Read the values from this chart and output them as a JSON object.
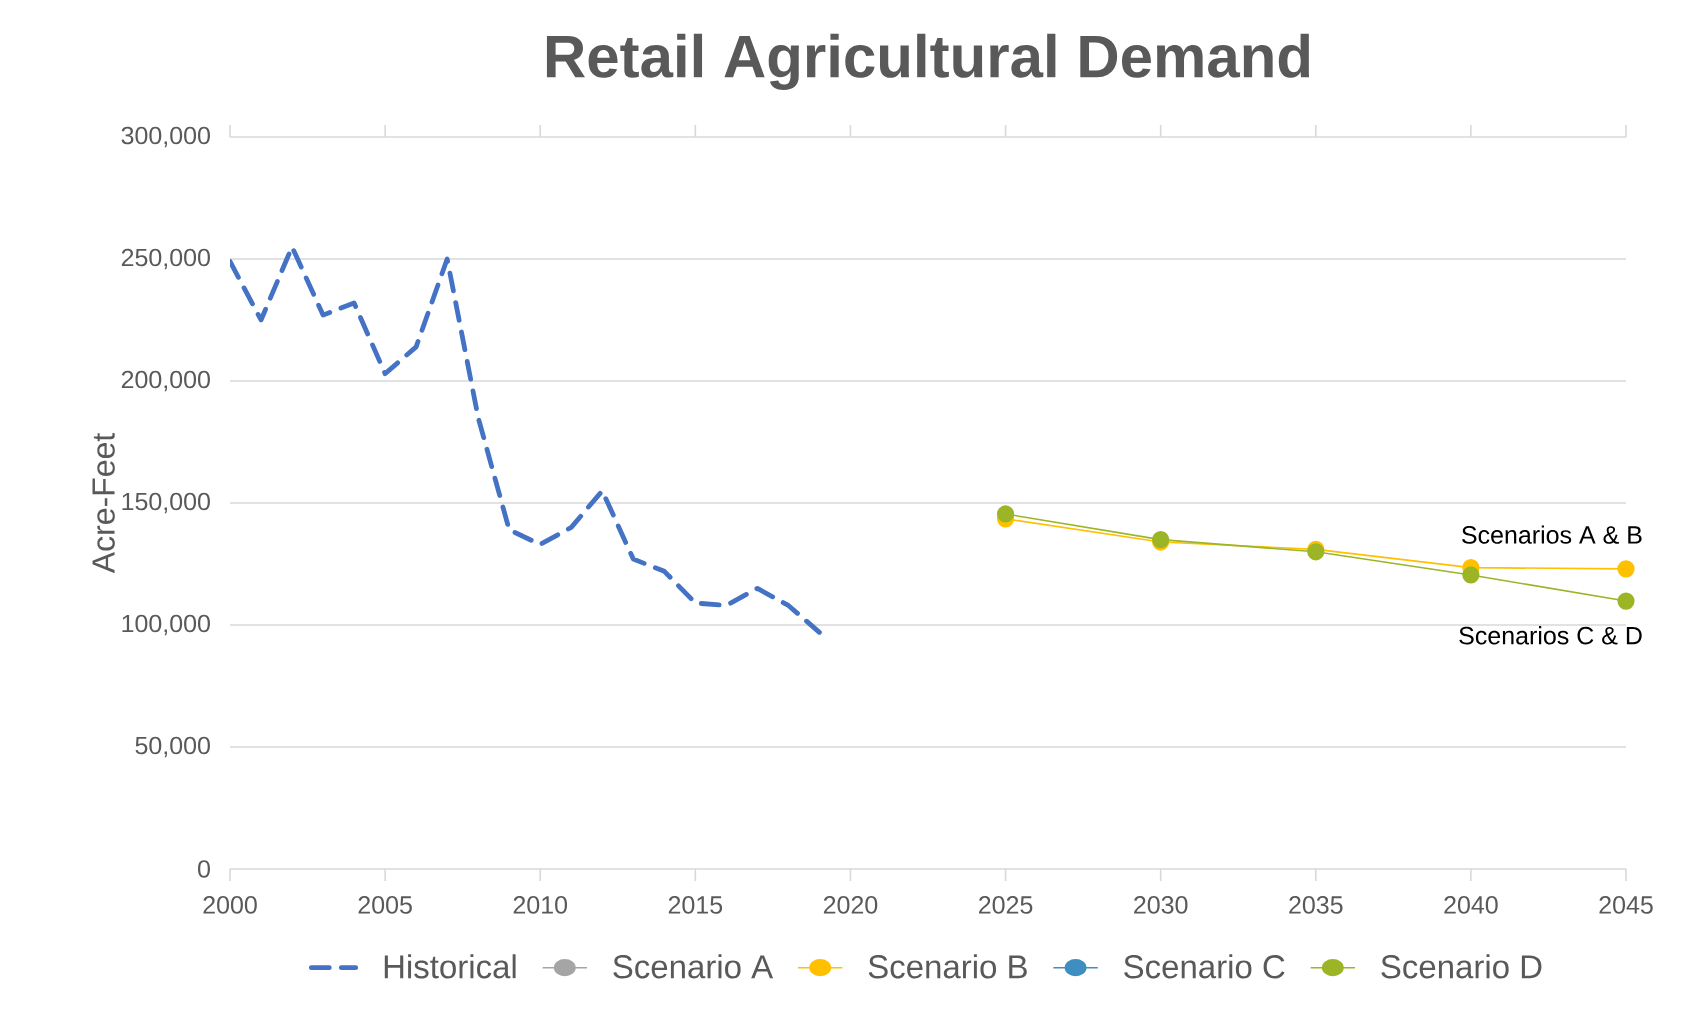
{
  "chart_data": {
    "type": "line",
    "title": "Retail Agricultural Demand",
    "ylabel": "Acre-Feet",
    "xlim": [
      2000,
      2045
    ],
    "xticks": [
      2000,
      2005,
      2010,
      2015,
      2020,
      2025,
      2030,
      2035,
      2040,
      2045
    ],
    "ylim": [
      0,
      300000
    ],
    "yticks": [
      0,
      {
        "value": 50000,
        "label": "50,000"
      },
      {
        "value": 100000,
        "label": "100,000"
      },
      {
        "value": 150000,
        "label": "150,000"
      },
      {
        "value": 200000,
        "label": "200,000"
      },
      {
        "value": 250000,
        "label": "250,000"
      },
      {
        "value": 300000,
        "label": "300,000"
      }
    ],
    "grid": "y",
    "legend": "bottom",
    "series": [
      {
        "name": "Historical",
        "color": "#4472c4",
        "line_style": "dashed",
        "marker": "none",
        "x": [
          2000,
          2001,
          2002,
          2003,
          2004,
          2005,
          2006,
          2007,
          2008,
          2009,
          2010,
          2011,
          2012,
          2013,
          2014,
          2015,
          2016,
          2017,
          2018,
          2019
        ],
        "values": [
          249000,
          225000,
          255000,
          227000,
          232000,
          203000,
          214000,
          250000,
          185000,
          139000,
          133000,
          140000,
          155000,
          127000,
          122000,
          109000,
          108000,
          115000,
          108000,
          97000
        ]
      },
      {
        "name": "Scenario A",
        "color": "#a5a5a5",
        "line_style": "solid",
        "marker": "circle",
        "values": [
          null,
          null,
          null,
          null,
          null
        ]
      },
      {
        "name": "Scenario B",
        "color": "#ffc000",
        "line_style": "solid",
        "marker": "circle",
        "x": [
          2025,
          2030,
          2035,
          2040,
          2045
        ],
        "values": [
          143500,
          134000,
          131000,
          123500,
          123000
        ]
      },
      {
        "name": "Scenario C",
        "color": "#3e8ebf",
        "line_style": "solid",
        "marker": "circle",
        "values": [
          null,
          null,
          null,
          null,
          null
        ]
      },
      {
        "name": "Scenario D",
        "color": "#9bb526",
        "line_style": "solid",
        "marker": "circle",
        "x": [
          2025,
          2030,
          2035,
          2040,
          2045
        ],
        "values": [
          145500,
          135000,
          130000,
          120500,
          109800
        ]
      }
    ],
    "annotations": [
      {
        "text": "Scenarios A & B",
        "x": 2045,
        "y": 123000
      },
      {
        "text": "Scenarios C & D",
        "x": 2045,
        "y": 109800
      }
    ]
  }
}
